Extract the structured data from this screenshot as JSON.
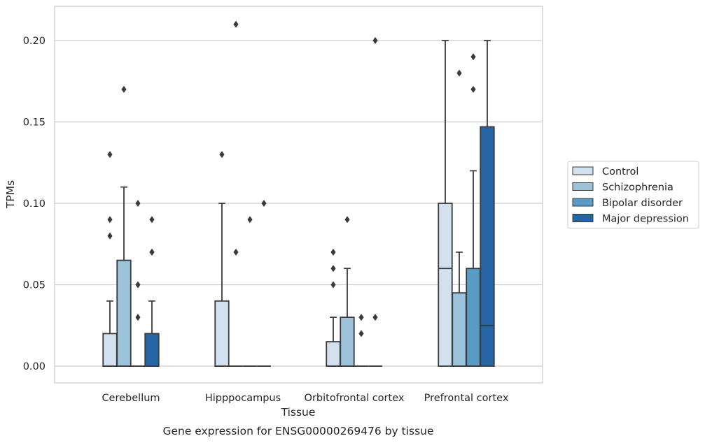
{
  "chart_data": {
    "type": "boxplot",
    "caption": "Gene expression for ENSG00000269476 by tissue",
    "xlabel": "Tissue",
    "ylabel": "TPMs",
    "ylim": [
      -0.01,
      0.221
    ],
    "yticks": [
      "0.00",
      "0.05",
      "0.10",
      "0.15",
      "0.20"
    ],
    "ytick_values": [
      0,
      0.05,
      0.1,
      0.15,
      0.2
    ],
    "grid": "horizontal",
    "legend_position": "right",
    "categories": [
      "Cerebellum",
      "Hipppocampus",
      "Orbitofrontal cortex",
      "Prefrontal cortex"
    ],
    "series": [
      {
        "name": "Control",
        "color": "#d1e1ef",
        "boxes": [
          {
            "q1": 0,
            "median": 0,
            "q3": 0.02,
            "whisker_low": 0,
            "whisker_high": 0.04,
            "outliers": [
              0.08,
              0.09,
              0.13
            ]
          },
          {
            "q1": 0,
            "median": 0,
            "q3": 0.04,
            "whisker_low": 0,
            "whisker_high": 0.1,
            "outliers": [
              0.13
            ]
          },
          {
            "q1": 0,
            "median": 0,
            "q3": 0.015,
            "whisker_low": 0,
            "whisker_high": 0.03,
            "outliers": [
              0.05,
              0.06,
              0.07
            ]
          },
          {
            "q1": 0,
            "median": 0.06,
            "q3": 0.1,
            "whisker_low": 0,
            "whisker_high": 0.2,
            "outliers": []
          }
        ]
      },
      {
        "name": "Schizophrenia",
        "color": "#9cc3da",
        "boxes": [
          {
            "q1": 0,
            "median": 0,
            "q3": 0.065,
            "whisker_low": 0,
            "whisker_high": 0.11,
            "outliers": [
              0.17
            ]
          },
          {
            "q1": 0,
            "median": 0,
            "q3": 0,
            "whisker_low": 0,
            "whisker_high": 0,
            "outliers": [
              0.07,
              0.21
            ]
          },
          {
            "q1": 0,
            "median": 0,
            "q3": 0.03,
            "whisker_low": 0,
            "whisker_high": 0.06,
            "outliers": [
              0.09
            ]
          },
          {
            "q1": 0,
            "median": 0,
            "q3": 0.045,
            "whisker_low": 0,
            "whisker_high": 0.07,
            "outliers": [
              0.18
            ]
          }
        ]
      },
      {
        "name": "Bipolar disorder",
        "color": "#5a9bc6",
        "boxes": [
          {
            "q1": 0,
            "median": 0,
            "q3": 0,
            "whisker_low": 0,
            "whisker_high": 0,
            "outliers": [
              0.03,
              0.05,
              0.1
            ]
          },
          {
            "q1": 0,
            "median": 0,
            "q3": 0,
            "whisker_low": 0,
            "whisker_high": 0,
            "outliers": [
              0.09
            ]
          },
          {
            "q1": 0,
            "median": 0,
            "q3": 0,
            "whisker_low": 0,
            "whisker_high": 0,
            "outliers": [
              0.02,
              0.03
            ]
          },
          {
            "q1": 0,
            "median": 0,
            "q3": 0.06,
            "whisker_low": 0,
            "whisker_high": 0.12,
            "outliers": [
              0.17,
              0.19
            ]
          }
        ]
      },
      {
        "name": "Major depression",
        "color": "#2666a6",
        "boxes": [
          {
            "q1": 0,
            "median": 0,
            "q3": 0.02,
            "whisker_low": 0,
            "whisker_high": 0.04,
            "outliers": [
              0.07,
              0.07,
              0.09
            ]
          },
          {
            "q1": 0,
            "median": 0,
            "q3": 0,
            "whisker_low": 0,
            "whisker_high": 0,
            "outliers": [
              0.1
            ]
          },
          {
            "q1": 0,
            "median": 0,
            "q3": 0,
            "whisker_low": 0,
            "whisker_high": 0,
            "outliers": [
              0.03,
              0.2
            ]
          },
          {
            "q1": 0,
            "median": 0.025,
            "q3": 0.147,
            "whisker_low": 0,
            "whisker_high": 0.2,
            "outliers": []
          }
        ]
      }
    ]
  }
}
